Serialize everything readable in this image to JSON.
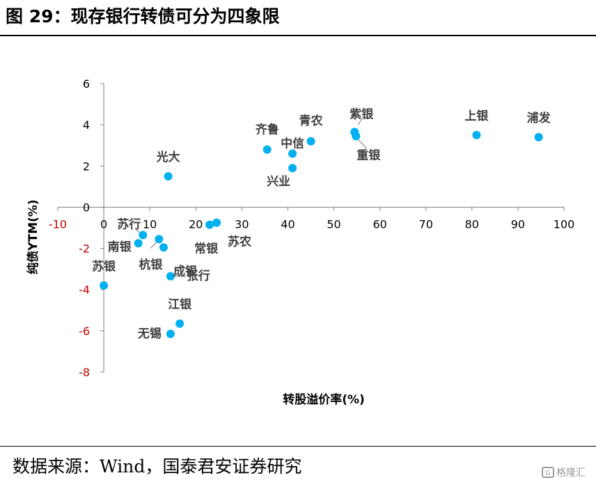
{
  "figure_title": "图 29：现存银行转债可分为四象限",
  "source_note": "数据来源：Wind，国泰君安证券研究",
  "watermark": {
    "logo": "G",
    "text": "格隆汇"
  },
  "chart_data": {
    "type": "scatter",
    "xlabel": "转股溢价率(%)",
    "ylabel": "纯债YTM(%)",
    "xlim": [
      -10,
      100
    ],
    "ylim": [
      -8,
      6
    ],
    "xticks": [
      -10,
      0,
      10,
      20,
      30,
      40,
      50,
      60,
      70,
      80,
      90,
      100
    ],
    "yticks": [
      -8,
      -6,
      -4,
      -2,
      0,
      2,
      4,
      6
    ],
    "negative_tick_color": "#c00000",
    "positive_tick_color": "#000000",
    "marker_color": "#00b0f0",
    "grid": false,
    "legend": "none",
    "points": [
      {
        "name": "浦发",
        "x": 94.5,
        "y": 3.4
      },
      {
        "name": "上银",
        "x": 81,
        "y": 3.5
      },
      {
        "name": "紫银",
        "x": 54.5,
        "y": 3.65
      },
      {
        "name": "重银",
        "x": 54.8,
        "y": 3.45
      },
      {
        "name": "青农",
        "x": 45,
        "y": 3.2
      },
      {
        "name": "中信",
        "x": 41,
        "y": 2.6
      },
      {
        "name": "兴业",
        "x": 41,
        "y": 1.9
      },
      {
        "name": "齐鲁",
        "x": 35.5,
        "y": 2.8
      },
      {
        "name": "光大",
        "x": 14,
        "y": 1.5
      },
      {
        "name": "苏农",
        "x": 24.5,
        "y": -0.75
      },
      {
        "name": "常银",
        "x": 23,
        "y": -0.85
      },
      {
        "name": "苏行",
        "x": 8.5,
        "y": -1.35
      },
      {
        "name": "南银",
        "x": 7.5,
        "y": -1.75
      },
      {
        "name": "杭银",
        "x": 12,
        "y": -1.55
      },
      {
        "name": "成银",
        "x": 13,
        "y": -1.95
      },
      {
        "name": "张行",
        "x": 14.5,
        "y": -3.35
      },
      {
        "name": "苏银",
        "x": 0,
        "y": -3.8
      },
      {
        "name": "江银",
        "x": 16.5,
        "y": -5.65
      },
      {
        "name": "无锡",
        "x": 14.5,
        "y": -6.15
      }
    ]
  }
}
